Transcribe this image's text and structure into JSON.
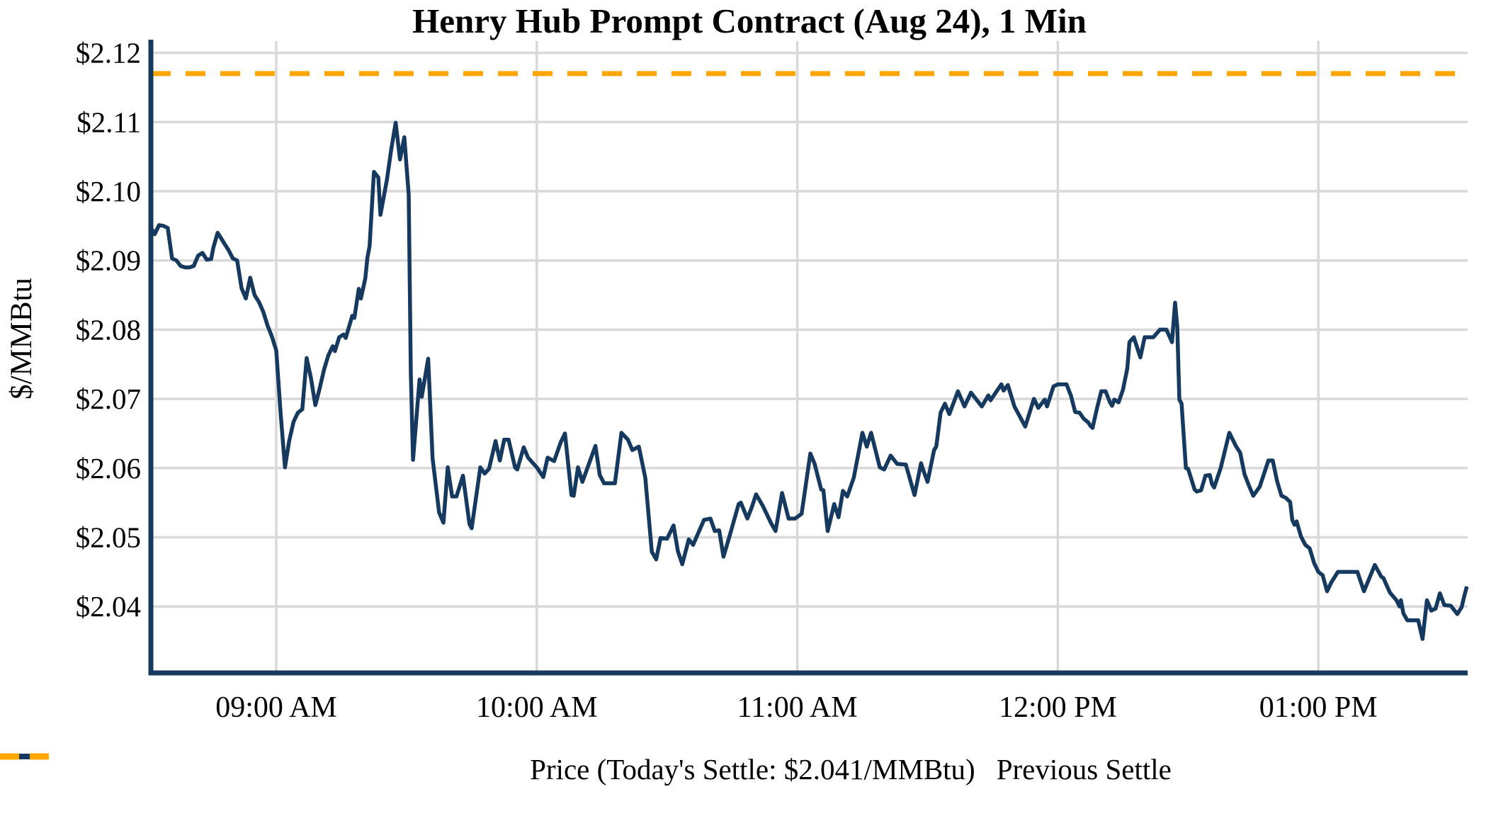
{
  "title": "Henry Hub Prompt Contract (Aug 24), 1 Min",
  "y_axis": {
    "label": "$/MMBtu",
    "ticks": [
      {
        "value": 2.12,
        "label": "$2.12"
      },
      {
        "value": 2.11,
        "label": "$2.11"
      },
      {
        "value": 2.1,
        "label": "$2.10"
      },
      {
        "value": 2.09,
        "label": "$2.09"
      },
      {
        "value": 2.08,
        "label": "$2.08"
      },
      {
        "value": 2.07,
        "label": "$2.07"
      },
      {
        "value": 2.06,
        "label": "$2.06"
      },
      {
        "value": 2.05,
        "label": "$2.05"
      },
      {
        "value": 2.04,
        "label": "$2.04"
      }
    ]
  },
  "x_axis": {
    "ticks": [
      {
        "minute": 30,
        "label": "09:00 AM"
      },
      {
        "minute": 90,
        "label": "10:00 AM"
      },
      {
        "minute": 150,
        "label": "11:00 AM"
      },
      {
        "minute": 210,
        "label": "12:00 PM"
      },
      {
        "minute": 270,
        "label": "01:00 PM"
      }
    ]
  },
  "legend": {
    "price_label": "Price (Today's Settle: $2.041/MMBtu)",
    "previous_settle_label": "Previous Settle"
  },
  "colors": {
    "price_line": "#163a5f",
    "previous_settle_line": "#FFA500",
    "grid": "#d9d9d9",
    "text": "#000000",
    "background": "#ffffff"
  },
  "chart_data": {
    "type": "line",
    "title": "Henry Hub Prompt Contract (Aug 24), 1 Min",
    "xlabel": "",
    "ylabel": "$/MMBtu",
    "x_unit": "minutes after 08:30 AM",
    "x_tick_minutes": [
      30,
      90,
      150,
      210,
      270
    ],
    "xlim": [
      0.6,
      304.6
    ],
    "ylim": [
      2.03,
      2.122
    ],
    "grid": true,
    "legend_position": "bottom",
    "today_settle": 2.041,
    "previous_settle": 2.117,
    "series": [
      {
        "name": "Price",
        "points": [
          [
            1,
            2.0949
          ],
          [
            2,
            2.0938
          ],
          [
            3,
            2.0951
          ],
          [
            4,
            2.095
          ],
          [
            5,
            2.0947
          ],
          [
            6,
            2.0903
          ],
          [
            7,
            2.09
          ],
          [
            8,
            2.0892
          ],
          [
            9,
            2.089
          ],
          [
            10,
            2.089
          ],
          [
            11,
            2.0892
          ],
          [
            12,
            2.0907
          ],
          [
            13,
            2.0911
          ],
          [
            14,
            2.0901
          ],
          [
            15,
            2.0902
          ],
          [
            15.5,
            2.0918
          ],
          [
            16.5,
            2.094
          ],
          [
            17.5,
            2.093
          ],
          [
            18,
            2.0925
          ],
          [
            19,
            2.0915
          ],
          [
            20,
            2.0903
          ],
          [
            21,
            2.09
          ],
          [
            22,
            2.086
          ],
          [
            23,
            2.0845
          ],
          [
            24,
            2.0875
          ],
          [
            25,
            2.085
          ],
          [
            26,
            2.084
          ],
          [
            27,
            2.0826
          ],
          [
            28,
            2.0806
          ],
          [
            29,
            2.079
          ],
          [
            30,
            2.077
          ],
          [
            31,
            2.068
          ],
          [
            32,
            2.0601
          ],
          [
            33,
            2.064
          ],
          [
            34,
            2.0667
          ],
          [
            35,
            2.068
          ],
          [
            36,
            2.0685
          ],
          [
            37,
            2.0759
          ],
          [
            38,
            2.073
          ],
          [
            39,
            2.0691
          ],
          [
            40,
            2.0715
          ],
          [
            41,
            2.0742
          ],
          [
            42,
            2.0763
          ],
          [
            43,
            2.0776
          ],
          [
            43.5,
            2.0769
          ],
          [
            44.5,
            2.0789
          ],
          [
            45.5,
            2.0793
          ],
          [
            46,
            2.0788
          ],
          [
            47.5,
            2.082
          ],
          [
            48,
            2.0817
          ],
          [
            49,
            2.0859
          ],
          [
            49.5,
            2.0845
          ],
          [
            50.5,
            2.0874
          ],
          [
            51,
            2.0904
          ],
          [
            51.5,
            2.0921
          ],
          [
            52.5,
            2.1028
          ],
          [
            53.5,
            2.102
          ],
          [
            54,
            2.0966
          ],
          [
            55.5,
            2.1017
          ],
          [
            56.5,
            2.1061
          ],
          [
            57.5,
            2.1099
          ],
          [
            58.5,
            2.1046
          ],
          [
            59.5,
            2.1078
          ],
          [
            60.5,
            2.0995
          ],
          [
            61,
            2.0736
          ],
          [
            61.5,
            2.0612
          ],
          [
            63,
            2.0728
          ],
          [
            63.5,
            2.0703
          ],
          [
            65,
            2.0758
          ],
          [
            66,
            2.0614
          ],
          [
            67.5,
            2.0536
          ],
          [
            68.5,
            2.0521
          ],
          [
            69.5,
            2.0601
          ],
          [
            70.5,
            2.0559
          ],
          [
            71.5,
            2.0559
          ],
          [
            73,
            2.0589
          ],
          [
            74.5,
            2.0519
          ],
          [
            75,
            2.0513
          ],
          [
            77,
            2.0601
          ],
          [
            78,
            2.0592
          ],
          [
            79,
            2.0599
          ],
          [
            80.5,
            2.0639
          ],
          [
            81.5,
            2.0611
          ],
          [
            82.5,
            2.0641
          ],
          [
            83.5,
            2.0641
          ],
          [
            85,
            2.0601
          ],
          [
            85.5,
            2.0598
          ],
          [
            87,
            2.063
          ],
          [
            88,
            2.0615
          ],
          [
            90,
            2.0601
          ],
          [
            91.5,
            2.0587
          ],
          [
            92.5,
            2.0615
          ],
          [
            94,
            2.061
          ],
          [
            95.5,
            2.0637
          ],
          [
            96.5,
            2.065
          ],
          [
            98,
            2.0561
          ],
          [
            98.5,
            2.056
          ],
          [
            99.5,
            2.0601
          ],
          [
            100.5,
            2.058
          ],
          [
            103.5,
            2.0632
          ],
          [
            104.5,
            2.059
          ],
          [
            105.5,
            2.0578
          ],
          [
            108,
            2.0578
          ],
          [
            109.5,
            2.0651
          ],
          [
            111,
            2.0641
          ],
          [
            112,
            2.0626
          ],
          [
            113.5,
            2.0631
          ],
          [
            115,
            2.0586
          ],
          [
            116.5,
            2.0479
          ],
          [
            117.5,
            2.0468
          ],
          [
            118.5,
            2.0499
          ],
          [
            120,
            2.0498
          ],
          [
            121.5,
            2.0517
          ],
          [
            122.5,
            2.048
          ],
          [
            123.5,
            2.0461
          ],
          [
            125,
            2.0497
          ],
          [
            126,
            2.0489
          ],
          [
            128.5,
            2.0525
          ],
          [
            130,
            2.0527
          ],
          [
            131,
            2.0509
          ],
          [
            132,
            2.051
          ],
          [
            133,
            2.0472
          ],
          [
            134.5,
            2.0504
          ],
          [
            136.5,
            2.0548
          ],
          [
            137,
            2.055
          ],
          [
            138.5,
            2.0527
          ],
          [
            139.5,
            2.0543
          ],
          [
            140.5,
            2.0562
          ],
          [
            142,
            2.0546
          ],
          [
            144,
            2.052
          ],
          [
            145,
            2.0509
          ],
          [
            146.5,
            2.0564
          ],
          [
            148,
            2.0527
          ],
          [
            149.5,
            2.0527
          ],
          [
            151,
            2.0534
          ],
          [
            153,
            2.0621
          ],
          [
            154,
            2.0606
          ],
          [
            155.5,
            2.0569
          ],
          [
            156,
            2.0568
          ],
          [
            157,
            2.0509
          ],
          [
            158.5,
            2.0548
          ],
          [
            159.5,
            2.0529
          ],
          [
            160.5,
            2.0567
          ],
          [
            161.5,
            2.0559
          ],
          [
            163,
            2.0586
          ],
          [
            165,
            2.0651
          ],
          [
            166,
            2.0631
          ],
          [
            167,
            2.0651
          ],
          [
            169,
            2.0601
          ],
          [
            170,
            2.0598
          ],
          [
            171.5,
            2.0618
          ],
          [
            173,
            2.0606
          ],
          [
            175,
            2.0605
          ],
          [
            177,
            2.0561
          ],
          [
            178.5,
            2.0607
          ],
          [
            179,
            2.0597
          ],
          [
            180,
            2.058
          ],
          [
            181.5,
            2.0626
          ],
          [
            182,
            2.0631
          ],
          [
            183,
            2.068
          ],
          [
            184,
            2.0693
          ],
          [
            185,
            2.0678
          ],
          [
            187,
            2.0711
          ],
          [
            188.5,
            2.0689
          ],
          [
            190,
            2.0709
          ],
          [
            192.5,
            2.0689
          ],
          [
            194,
            2.0705
          ],
          [
            194.5,
            2.0698
          ],
          [
            197,
            2.0721
          ],
          [
            197.5,
            2.0712
          ],
          [
            198.5,
            2.072
          ],
          [
            200,
            2.0689
          ],
          [
            202.5,
            2.066
          ],
          [
            204.5,
            2.07
          ],
          [
            205.5,
            2.0687
          ],
          [
            207,
            2.0699
          ],
          [
            207.5,
            2.0689
          ],
          [
            209,
            2.0718
          ],
          [
            210,
            2.0721
          ],
          [
            212,
            2.0721
          ],
          [
            213,
            2.0705
          ],
          [
            214,
            2.0681
          ],
          [
            215,
            2.068
          ],
          [
            216,
            2.0671
          ],
          [
            217,
            2.0666
          ],
          [
            217.5,
            2.0661
          ],
          [
            218,
            2.0658
          ],
          [
            219,
            2.0686
          ],
          [
            220,
            2.0711
          ],
          [
            221,
            2.0711
          ],
          [
            222,
            2.0695
          ],
          [
            222.5,
            2.069
          ],
          [
            223,
            2.0699
          ],
          [
            224,
            2.0695
          ],
          [
            225,
            2.0713
          ],
          [
            226,
            2.0744
          ],
          [
            226.5,
            2.0782
          ],
          [
            227.5,
            2.0789
          ],
          [
            229,
            2.076
          ],
          [
            230,
            2.0789
          ],
          [
            232,
            2.0789
          ],
          [
            233.5,
            2.08
          ],
          [
            235,
            2.08
          ],
          [
            236.3,
            2.0782
          ],
          [
            237,
            2.0839
          ],
          [
            237.5,
            2.0805
          ],
          [
            238,
            2.0699
          ],
          [
            238.5,
            2.0693
          ],
          [
            239.5,
            2.06
          ],
          [
            240,
            2.0599
          ],
          [
            241.5,
            2.0569
          ],
          [
            242,
            2.0566
          ],
          [
            243,
            2.0568
          ],
          [
            244,
            2.0589
          ],
          [
            245,
            2.059
          ],
          [
            245.5,
            2.0577
          ],
          [
            246,
            2.0572
          ],
          [
            247.5,
            2.06
          ],
          [
            249.5,
            2.0651
          ],
          [
            251,
            2.0632
          ],
          [
            252,
            2.0622
          ],
          [
            253,
            2.0591
          ],
          [
            254,
            2.0575
          ],
          [
            255,
            2.056
          ],
          [
            256.5,
            2.0573
          ],
          [
            258.5,
            2.0611
          ],
          [
            259.5,
            2.0611
          ],
          [
            260.5,
            2.0581
          ],
          [
            261.5,
            2.056
          ],
          [
            262.5,
            2.0557
          ],
          [
            263.5,
            2.0551
          ],
          [
            264,
            2.0525
          ],
          [
            264.5,
            2.0518
          ],
          [
            265,
            2.0523
          ],
          [
            266,
            2.0501
          ],
          [
            267,
            2.0489
          ],
          [
            268,
            2.0484
          ],
          [
            269,
            2.0463
          ],
          [
            270,
            2.045
          ],
          [
            271,
            2.0445
          ],
          [
            272,
            2.0422
          ],
          [
            273,
            2.0435
          ],
          [
            274.5,
            2.045
          ],
          [
            279,
            2.045
          ],
          [
            280.5,
            2.0422
          ],
          [
            283,
            2.046
          ],
          [
            284.5,
            2.0443
          ],
          [
            285,
            2.0441
          ],
          [
            286.5,
            2.042
          ],
          [
            288,
            2.0409
          ],
          [
            288.7,
            2.04
          ],
          [
            289,
            2.0409
          ],
          [
            289.6,
            2.039
          ],
          [
            290.5,
            2.038
          ],
          [
            293,
            2.038
          ],
          [
            294,
            2.0353
          ],
          [
            295,
            2.0409
          ],
          [
            296,
            2.0394
          ],
          [
            297,
            2.0397
          ],
          [
            298,
            2.0419
          ],
          [
            299,
            2.0402
          ],
          [
            300.5,
            2.0401
          ],
          [
            302,
            2.0389
          ],
          [
            303,
            2.0399
          ],
          [
            303.6,
            2.0415
          ],
          [
            304.2,
            2.0429
          ]
        ]
      },
      {
        "name": "Previous Settle",
        "constant_value": 2.117
      }
    ]
  }
}
